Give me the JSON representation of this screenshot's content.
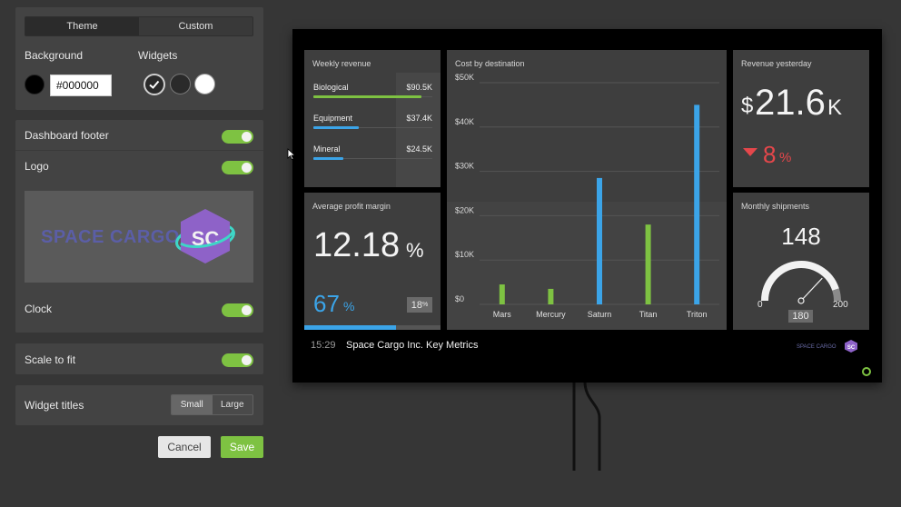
{
  "settings": {
    "theme_tabs": [
      "Theme",
      "Custom"
    ],
    "background_label": "Background",
    "widgets_label": "Widgets",
    "background_value": "#000000",
    "dashboard_footer_label": "Dashboard footer",
    "logo_label": "Logo",
    "clock_label": "Clock",
    "scale_label": "Scale to fit",
    "widget_titles_label": "Widget titles",
    "widget_title_sizes": [
      "Small",
      "Large"
    ],
    "cancel_label": "Cancel",
    "save_label": "Save",
    "logo_text": "SPACE CARGO",
    "logo_mark": "SC"
  },
  "colors": {
    "accent_green": "#7ec242",
    "accent_blue": "#3ba4e8",
    "accent_red": "#e5474b"
  },
  "dashboard": {
    "weekly_revenue": {
      "title": "Weekly revenue",
      "rows": [
        {
          "name": "Biological",
          "value": "$90.5K",
          "fraction": 0.91,
          "color": "#7ec242"
        },
        {
          "name": "Equipment",
          "value": "$37.4K",
          "fraction": 0.38,
          "color": "#3ba4e8"
        },
        {
          "name": "Mineral",
          "value": "$24.5K",
          "fraction": 0.25,
          "color": "#3ba4e8"
        }
      ]
    },
    "revenue_yesterday": {
      "title": "Revenue yesterday",
      "currency": "$",
      "value": "21.6",
      "suffix": "K",
      "change": "8",
      "change_unit": "%"
    },
    "profit_margin": {
      "title": "Average profit margin",
      "value": "12.18",
      "unit": "%",
      "current": "67",
      "current_unit": "%",
      "target": "18",
      "target_unit": "%",
      "progress": 0.67
    },
    "shipments": {
      "title": "Monthly shipments",
      "value": "148",
      "min": "0",
      "max": "200",
      "target": "180",
      "level": 0.74
    },
    "footer": {
      "time": "15:29",
      "title": "Space Cargo Inc. Key Metrics"
    }
  },
  "chart_data": {
    "type": "bar",
    "title": "Cost by destination",
    "categories": [
      "Mars",
      "Mercury",
      "Saturn",
      "Titan",
      "Triton"
    ],
    "series": [
      {
        "values": [
          4.5,
          3.5,
          28.5,
          18,
          45
        ]
      }
    ],
    "bar_colors": [
      "#7ec242",
      "#7ec242",
      "#3ba4e8",
      "#7ec242",
      "#3ba4e8"
    ],
    "y_ticks": [
      "$0",
      "$10K",
      "$20K",
      "$30K",
      "$40K",
      "$50K"
    ],
    "ylim": [
      0,
      50
    ],
    "grid": true
  }
}
